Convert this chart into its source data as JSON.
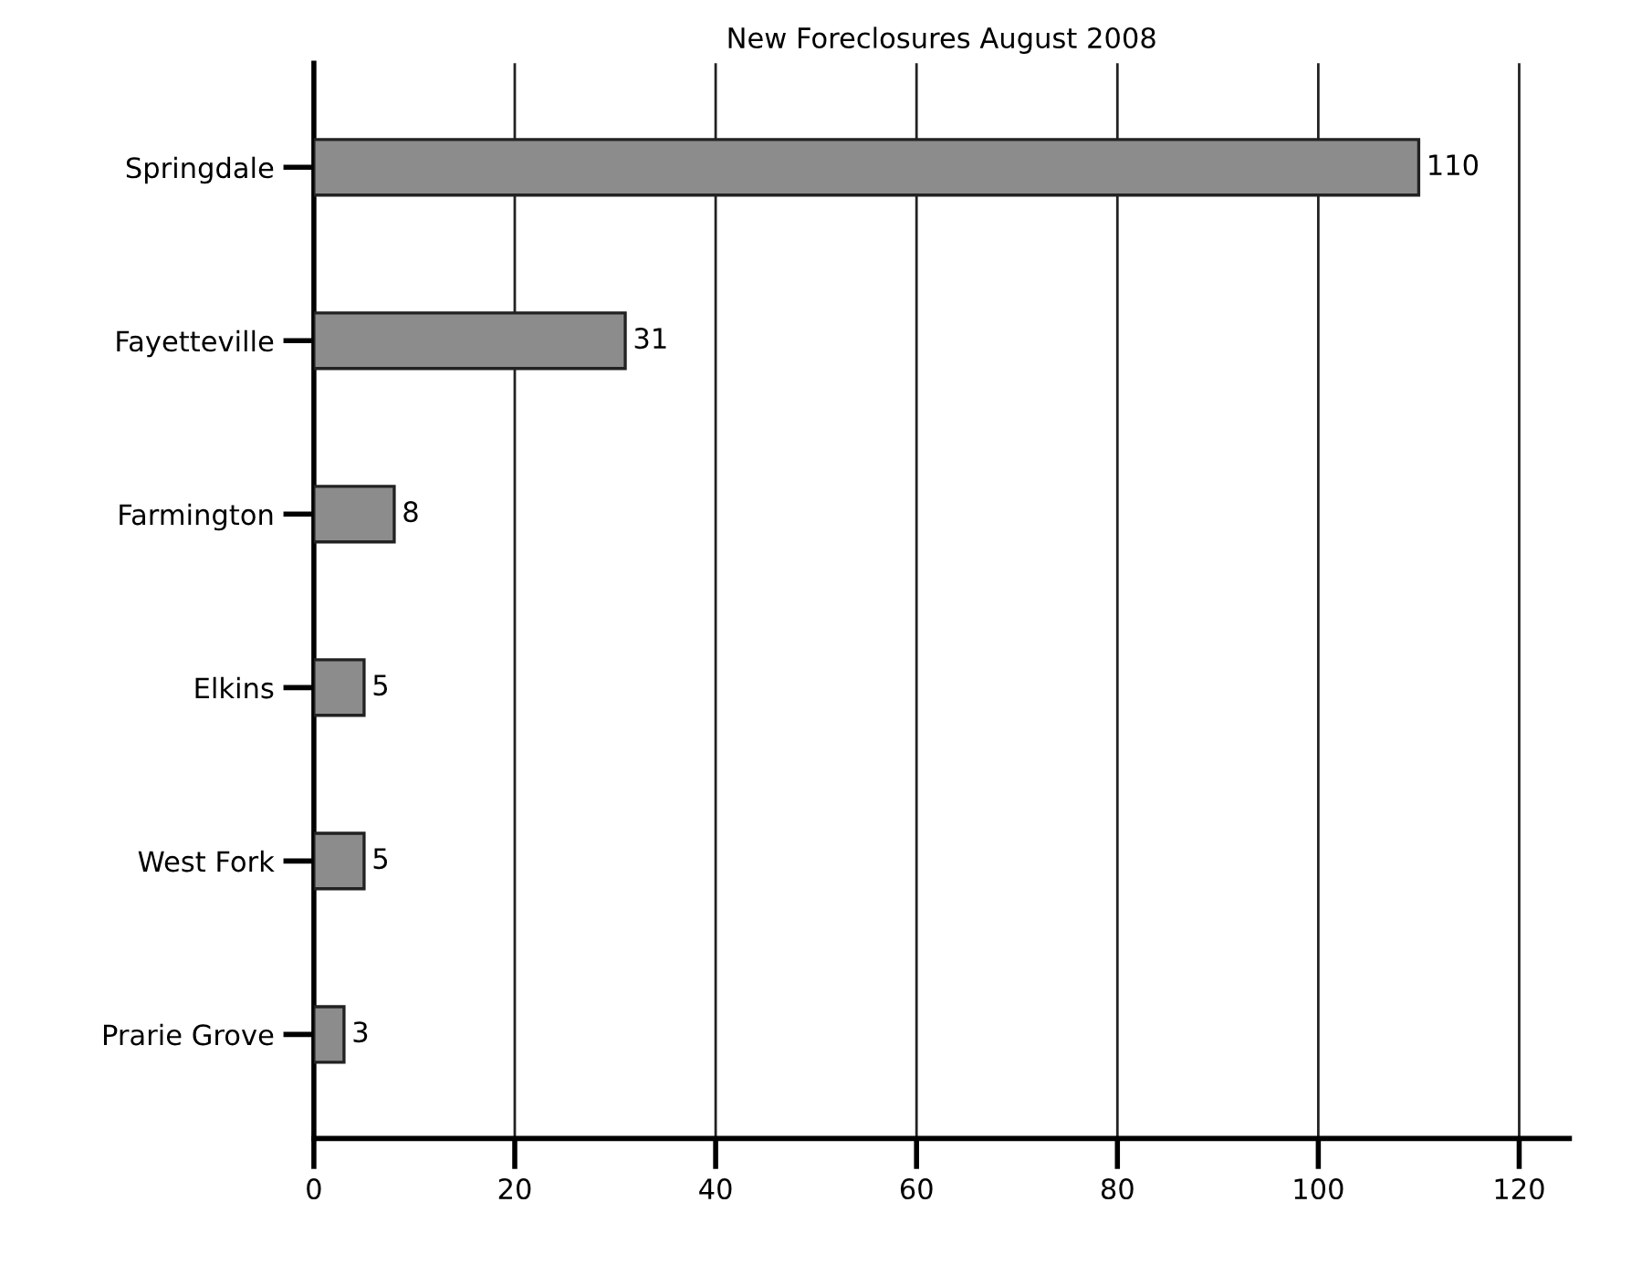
{
  "chart_data": {
    "type": "bar",
    "orientation": "horizontal",
    "title": "New Foreclosures August 2008",
    "categories": [
      "Springdale",
      "Fayetteville",
      "Farmington",
      "Elkins",
      "West Fork",
      "Prarie Grove"
    ],
    "values": [
      110,
      31,
      8,
      5,
      5,
      3
    ],
    "color": "#8c8c8c",
    "xlim": [
      0,
      125
    ],
    "xticks": [
      0,
      20,
      40,
      60,
      80,
      100,
      120
    ],
    "grid": "x",
    "data_labels": true
  }
}
